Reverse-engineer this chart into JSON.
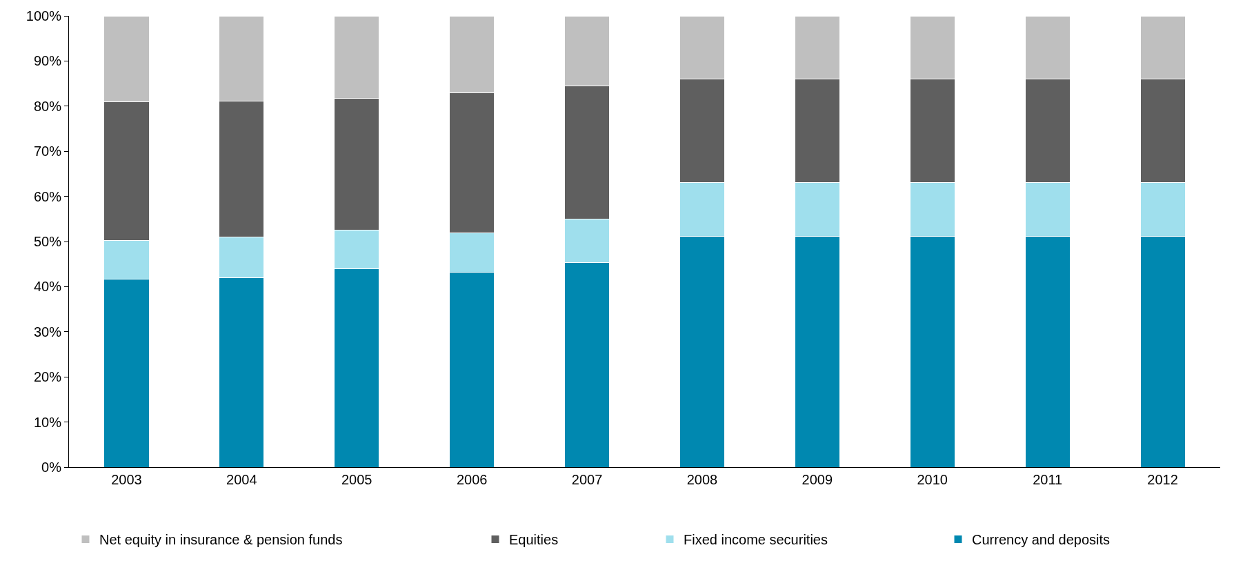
{
  "chart_data": {
    "type": "bar",
    "stacked": true,
    "categories": [
      "2003",
      "2004",
      "2005",
      "2006",
      "2007",
      "2008",
      "2009",
      "2010",
      "2011",
      "2012"
    ],
    "series": [
      {
        "name": "Currency and deposits",
        "color": "#0088b0",
        "values": [
          41.6,
          42.0,
          44.0,
          43.2,
          45.4,
          51.2,
          51.2,
          51.2,
          51.2,
          51.2
        ]
      },
      {
        "name": "Fixed income securities",
        "color": "#9fdfed",
        "values": [
          8.6,
          9.0,
          8.6,
          8.7,
          9.5,
          11.9,
          11.9,
          11.9,
          11.9,
          11.9
        ]
      },
      {
        "name": "Equities",
        "color": "#5f5f5f",
        "values": [
          30.7,
          30.1,
          29.1,
          31.0,
          29.6,
          22.9,
          22.9,
          22.9,
          22.9,
          22.9
        ]
      },
      {
        "name": "Net equity in insurance & pension funds",
        "color": "#bfbfbf",
        "values": [
          19.1,
          18.9,
          18.3,
          17.1,
          15.5,
          14.0,
          14.0,
          14.0,
          14.0,
          14.0
        ]
      }
    ],
    "ylim": [
      0,
      100
    ],
    "yticks": [
      {
        "value": 0,
        "label": "0%"
      },
      {
        "value": 10,
        "label": "10%"
      },
      {
        "value": 20,
        "label": "20%"
      },
      {
        "value": 30,
        "label": "30%"
      },
      {
        "value": 40,
        "label": "40%"
      },
      {
        "value": 50,
        "label": "50%"
      },
      {
        "value": 60,
        "label": "60%"
      },
      {
        "value": 70,
        "label": "70%"
      },
      {
        "value": 80,
        "label": "80%"
      },
      {
        "value": 90,
        "label": "90%"
      },
      {
        "value": 100,
        "label": "100%"
      }
    ],
    "legend": "bottom"
  }
}
